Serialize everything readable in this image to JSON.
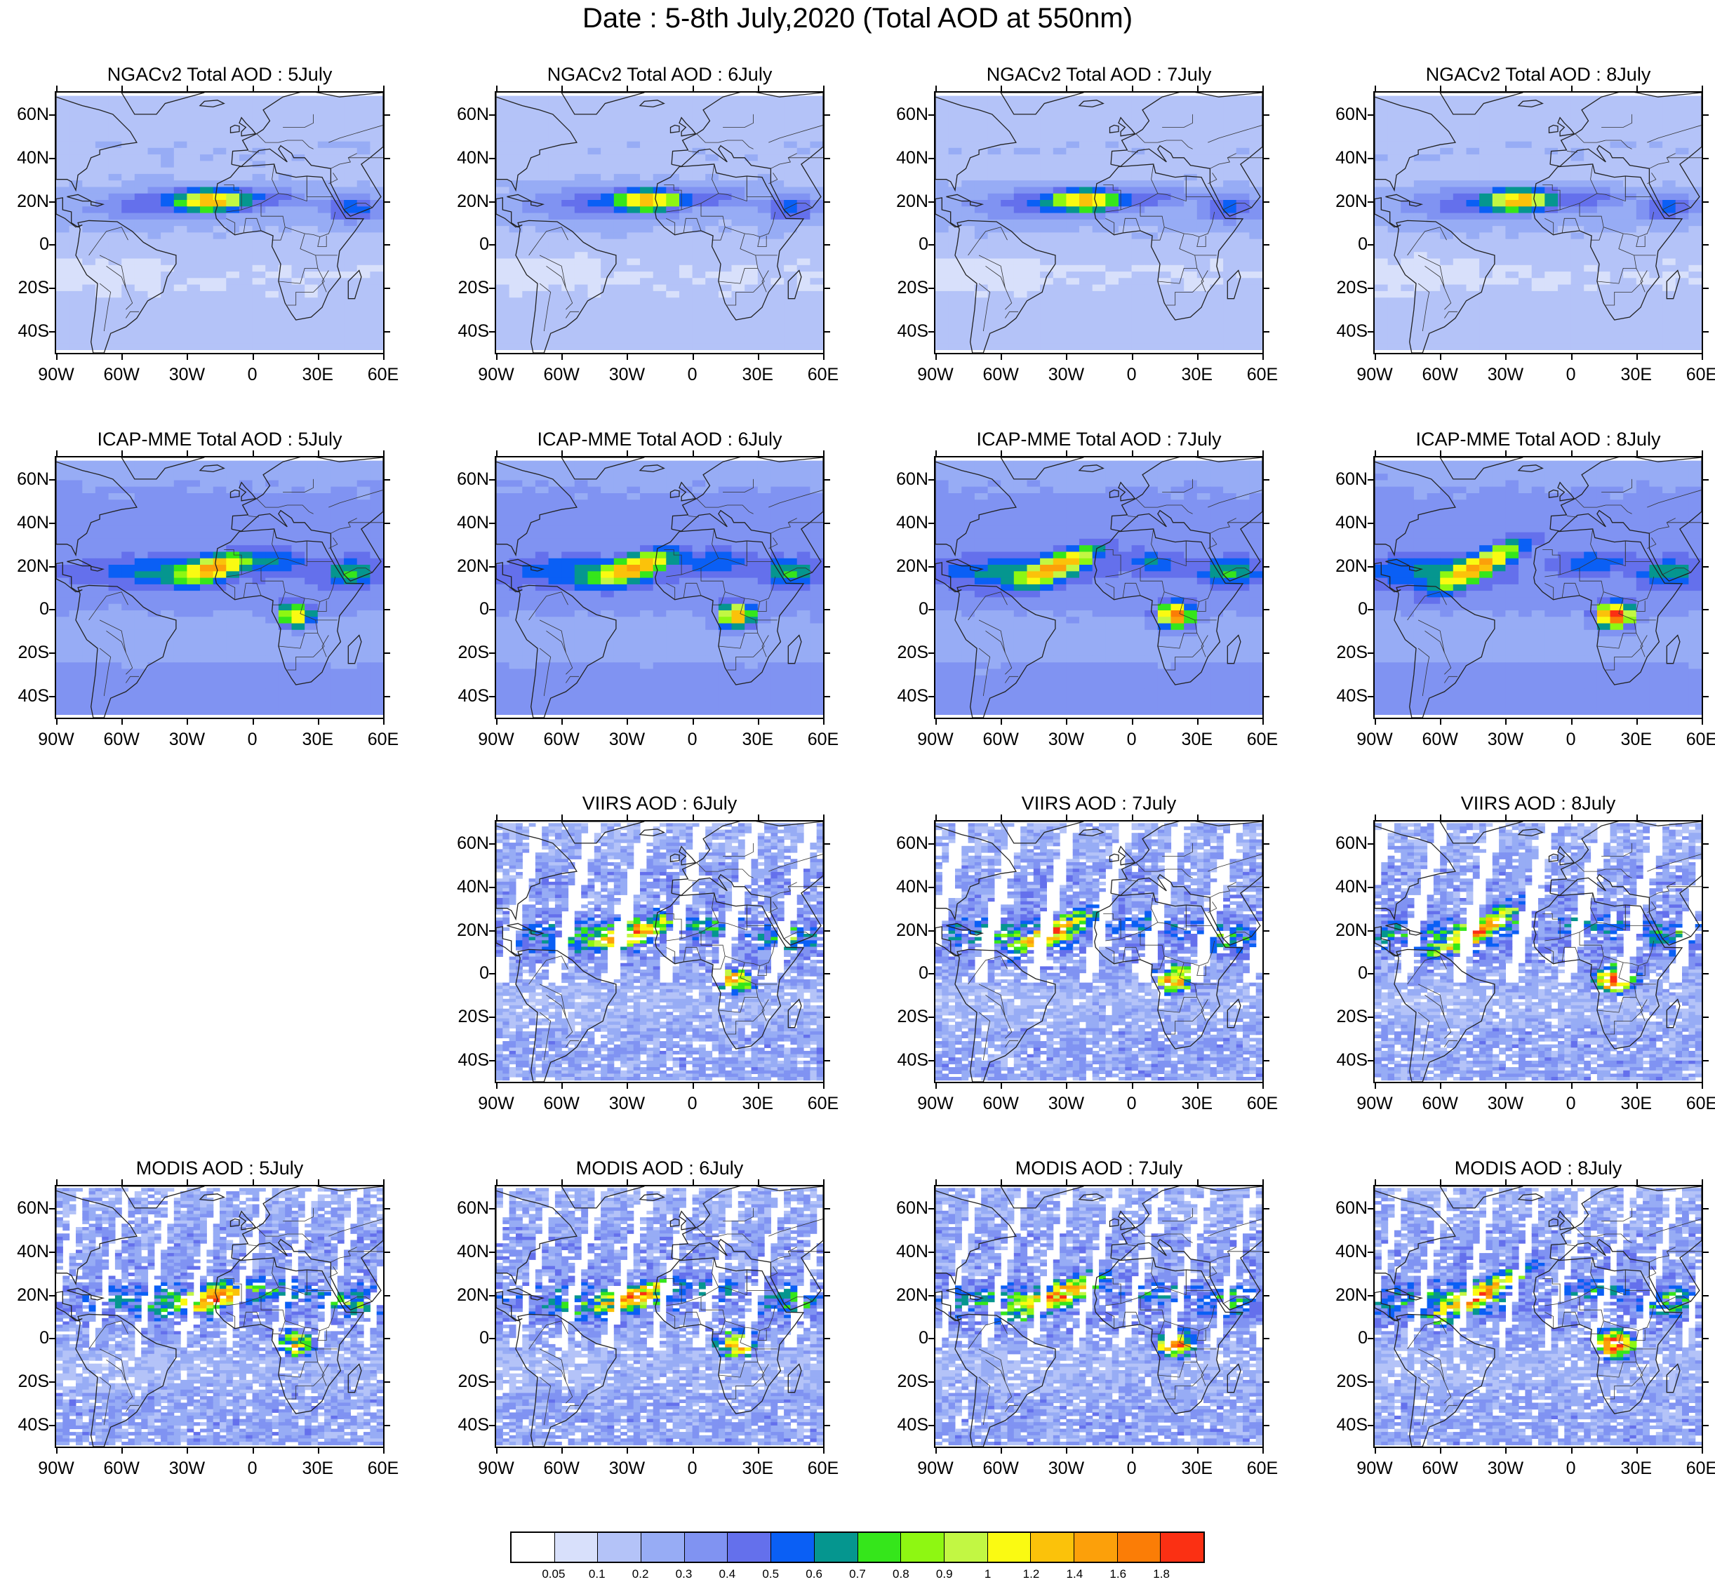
{
  "title": "Date : 5-8th July,2020 (Total AOD at 550nm)",
  "lat_labels": [
    "60N",
    "40N",
    "20N",
    "0",
    "20S",
    "40S"
  ],
  "lon_labels": [
    "90W",
    "60W",
    "30W",
    "0",
    "30E",
    "60E"
  ],
  "panels": [
    {
      "row": 0,
      "col": 0,
      "title": "NGACv2 Total AOD : 5July",
      "type": "model-ngac",
      "day": 5
    },
    {
      "row": 0,
      "col": 1,
      "title": "NGACv2 Total AOD : 6July",
      "type": "model-ngac",
      "day": 6
    },
    {
      "row": 0,
      "col": 2,
      "title": "NGACv2 Total AOD : 7July",
      "type": "model-ngac",
      "day": 7
    },
    {
      "row": 0,
      "col": 3,
      "title": "NGACv2 Total AOD : 8July",
      "type": "model-ngac",
      "day": 8
    },
    {
      "row": 1,
      "col": 0,
      "title": "ICAP-MME Total AOD : 5July",
      "type": "model-icap",
      "day": 5
    },
    {
      "row": 1,
      "col": 1,
      "title": "ICAP-MME Total AOD : 6July",
      "type": "model-icap",
      "day": 6
    },
    {
      "row": 1,
      "col": 2,
      "title": "ICAP-MME Total AOD : 7July",
      "type": "model-icap",
      "day": 7
    },
    {
      "row": 1,
      "col": 3,
      "title": "ICAP-MME Total AOD : 8July",
      "type": "model-icap",
      "day": 8
    },
    {
      "row": 2,
      "col": 1,
      "title": "VIIRS AOD : 6July",
      "type": "sat-viirs",
      "day": 6
    },
    {
      "row": 2,
      "col": 2,
      "title": "VIIRS AOD : 7July",
      "type": "sat-viirs",
      "day": 7
    },
    {
      "row": 2,
      "col": 3,
      "title": "VIIRS AOD : 8July",
      "type": "sat-viirs",
      "day": 8
    },
    {
      "row": 3,
      "col": 0,
      "title": "MODIS AOD : 5July",
      "type": "sat-modis",
      "day": 5
    },
    {
      "row": 3,
      "col": 1,
      "title": "MODIS AOD : 6July",
      "type": "sat-modis",
      "day": 6
    },
    {
      "row": 3,
      "col": 2,
      "title": "MODIS AOD : 7July",
      "type": "sat-modis",
      "day": 7
    },
    {
      "row": 3,
      "col": 3,
      "title": "MODIS AOD : 8July",
      "type": "sat-modis",
      "day": 8
    }
  ],
  "colorbar": {
    "colors": [
      "#ffffff",
      "#d8e0fb",
      "#b4c3f8",
      "#97acf5",
      "#8093f2",
      "#6470ec",
      "#0a5ff5",
      "#05968f",
      "#35e61b",
      "#8ef712",
      "#c2f743",
      "#fafa12",
      "#fbc20a",
      "#fca00a",
      "#fb7d06",
      "#fb3013"
    ],
    "labels": [
      "0.05",
      "0.1",
      "0.2",
      "0.3",
      "0.4",
      "0.5",
      "0.6",
      "0.7",
      "0.8",
      "0.9",
      "1",
      "1.2",
      "1.4",
      "1.6",
      "1.8"
    ]
  }
}
